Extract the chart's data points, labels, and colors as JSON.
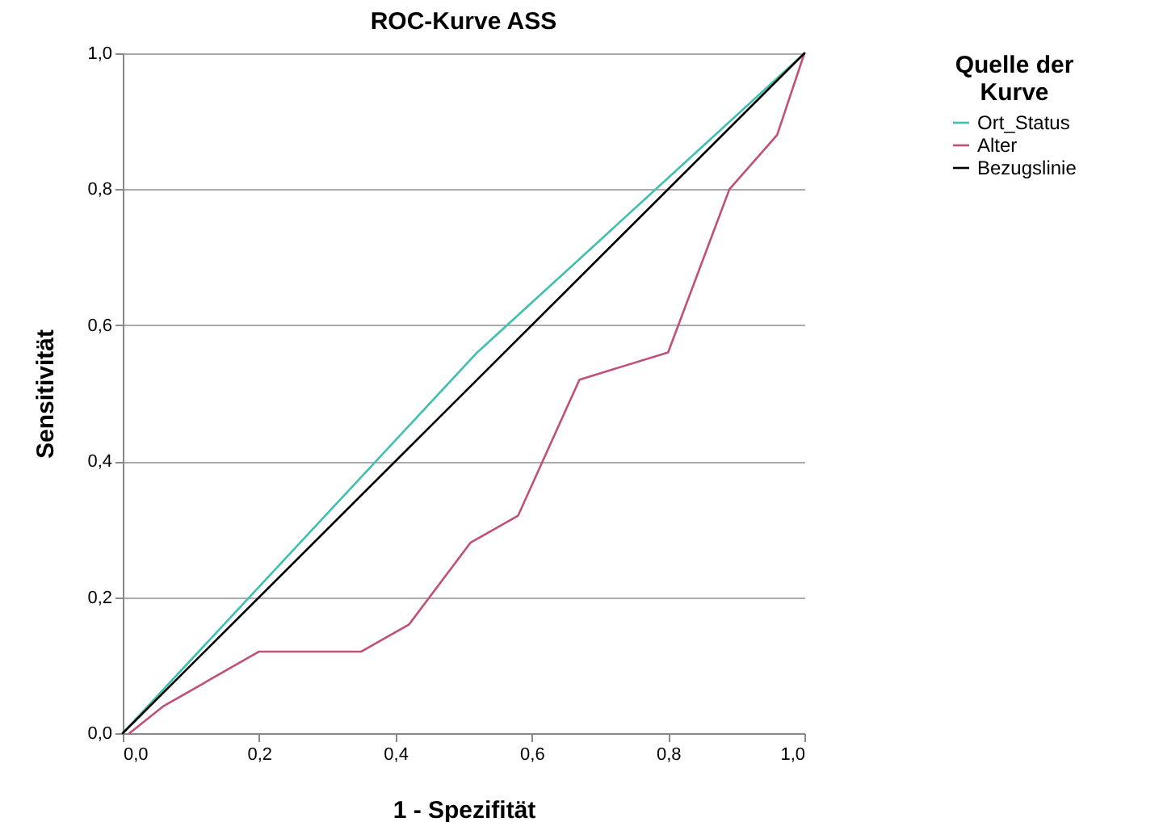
{
  "chart_data": {
    "type": "line",
    "title": "ROC-Kurve ASS",
    "xlabel": "1 - Spezifität",
    "ylabel": "Sensitivität",
    "legend_title": "Quelle der Kurve",
    "legend": "right",
    "grid": "y",
    "line_style": "solid",
    "marker": "none",
    "xlim": [
      0,
      1
    ],
    "ylim": [
      0,
      1
    ],
    "xticks": [
      {
        "value": 0,
        "label": "0,0"
      },
      {
        "value": 0.2,
        "label": "0,2"
      },
      {
        "value": 0.4,
        "label": "0,4"
      },
      {
        "value": 0.6,
        "label": "0,6"
      },
      {
        "value": 0.8,
        "label": "0,8"
      },
      {
        "value": 1,
        "label": "1,0"
      }
    ],
    "yticks": [
      {
        "value": 0,
        "label": "0,0"
      },
      {
        "value": 0.2,
        "label": "0,2"
      },
      {
        "value": 0.4,
        "label": "0,4"
      },
      {
        "value": 0.6,
        "label": "0,6"
      },
      {
        "value": 0.8,
        "label": "0,8"
      },
      {
        "value": 1,
        "label": "1,0"
      }
    ],
    "series": [
      {
        "name": "Ort_Status",
        "color": "#3fbfae",
        "x": [
          0,
          0.52,
          1
        ],
        "values": [
          0,
          0.56,
          1
        ]
      },
      {
        "name": "Alter",
        "color": "#c0507a",
        "x": [
          0.01,
          0.06,
          0.2,
          0.35,
          0.42,
          0.51,
          0.58,
          0.67,
          0.8,
          0.89,
          0.96,
          1
        ],
        "values": [
          0,
          0.04,
          0.12,
          0.12,
          0.16,
          0.28,
          0.32,
          0.52,
          0.56,
          0.8,
          0.88,
          1
        ]
      },
      {
        "name": "Bezugslinie",
        "color": "#000000",
        "x": [
          0,
          1
        ],
        "values": [
          0,
          1
        ]
      }
    ]
  }
}
